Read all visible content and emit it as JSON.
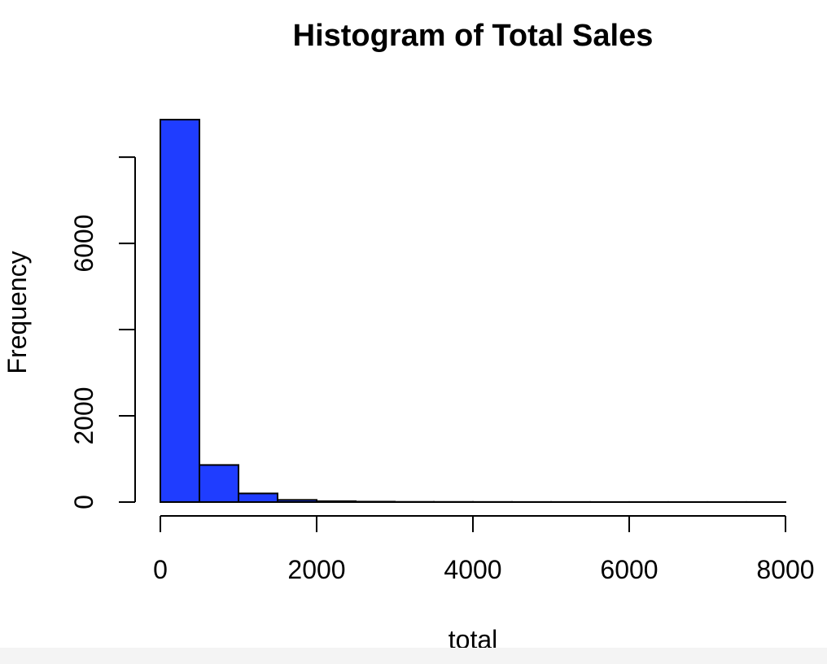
{
  "chart_data": {
    "type": "bar",
    "title": "Histogram of Total Sales",
    "xlabel": "total",
    "ylabel": "Frequency",
    "bin_edges": [
      0,
      500,
      1000,
      1500,
      2000,
      2500,
      3000,
      3500,
      4000,
      4500,
      5000,
      5500,
      6000,
      6500,
      7000,
      7500,
      8000
    ],
    "values": [
      8870,
      860,
      200,
      50,
      20,
      10,
      5,
      4,
      3,
      2,
      2,
      1,
      1,
      1,
      1,
      1
    ],
    "xlim": [
      0,
      8000
    ],
    "ylim": [
      0,
      8870
    ],
    "x_ticks": [
      0,
      2000,
      4000,
      6000,
      8000
    ],
    "x_tick_labels": [
      "0",
      "2000",
      "4000",
      "6000",
      "8000"
    ],
    "y_ticks": [
      0,
      2000,
      4000,
      6000,
      8000
    ],
    "y_tick_labels": [
      "0",
      "2000",
      "",
      "6000",
      ""
    ],
    "bar_color": "#1f3dff",
    "grid": false,
    "legend": "none"
  }
}
